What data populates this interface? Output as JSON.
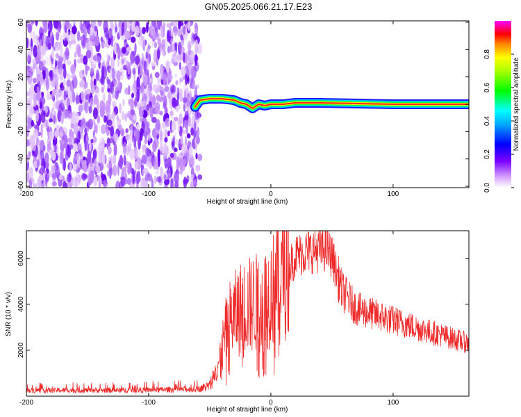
{
  "title": "GN05.2025.066.21.17.E23",
  "chart_data": [
    {
      "type": "heatmap",
      "xlabel": "Height of straight line (km)",
      "ylabel": "Frequency (Hz)",
      "xlim": [
        -200,
        162
      ],
      "ylim": [
        -61,
        61
      ],
      "x_ticks": [
        -200,
        -100,
        0,
        100
      ],
      "y_ticks": [
        -60,
        -40,
        -20,
        0,
        20,
        40,
        60
      ],
      "colorbar": {
        "label": "Normalized spectral amplitude",
        "range": [
          0,
          1
        ],
        "ticks": [
          "0.0",
          "0.2",
          "0.4",
          "0.6",
          "0.8"
        ]
      },
      "noise_region_x": [
        -200,
        -58
      ],
      "signal_trace": [
        {
          "x": -62,
          "f": -2
        },
        {
          "x": -58,
          "f": 3
        },
        {
          "x": -50,
          "f": 4
        },
        {
          "x": -40,
          "f": 4
        },
        {
          "x": -30,
          "f": 3
        },
        {
          "x": -25,
          "f": 1
        },
        {
          "x": -20,
          "f": 0
        },
        {
          "x": -15,
          "f": -3
        },
        {
          "x": -10,
          "f": 0
        },
        {
          "x": -5,
          "f": -1
        },
        {
          "x": 0,
          "f": 0
        },
        {
          "x": 10,
          "f": 0
        },
        {
          "x": 20,
          "f": 1
        },
        {
          "x": 40,
          "f": 1
        },
        {
          "x": 100,
          "f": 0
        },
        {
          "x": 162,
          "f": 0
        }
      ]
    },
    {
      "type": "line",
      "xlabel": "Height of straight line (km)",
      "ylabel": "SNR (10 * v/v)",
      "xlim": [
        -200,
        162
      ],
      "ylim": [
        0,
        7200
      ],
      "x_ticks": [
        -200,
        -100,
        0,
        100
      ],
      "y_ticks": [
        2000,
        4000,
        6000
      ],
      "series_color": "#ee2a2a",
      "envelope": [
        {
          "x": -200,
          "y": 250
        },
        {
          "x": -120,
          "y": 260
        },
        {
          "x": -60,
          "y": 300
        },
        {
          "x": -50,
          "y": 450
        },
        {
          "x": -42,
          "y": 1600
        },
        {
          "x": -35,
          "y": 3200
        },
        {
          "x": -25,
          "y": 3800
        },
        {
          "x": -15,
          "y": 4000
        },
        {
          "x": -5,
          "y": 4200
        },
        {
          "x": 10,
          "y": 5200
        },
        {
          "x": 20,
          "y": 6100
        },
        {
          "x": 30,
          "y": 6300
        },
        {
          "x": 45,
          "y": 6400
        },
        {
          "x": 50,
          "y": 6100
        },
        {
          "x": 58,
          "y": 4600
        },
        {
          "x": 70,
          "y": 3800
        },
        {
          "x": 100,
          "y": 3300
        },
        {
          "x": 130,
          "y": 2800
        },
        {
          "x": 162,
          "y": 2300
        }
      ]
    }
  ]
}
